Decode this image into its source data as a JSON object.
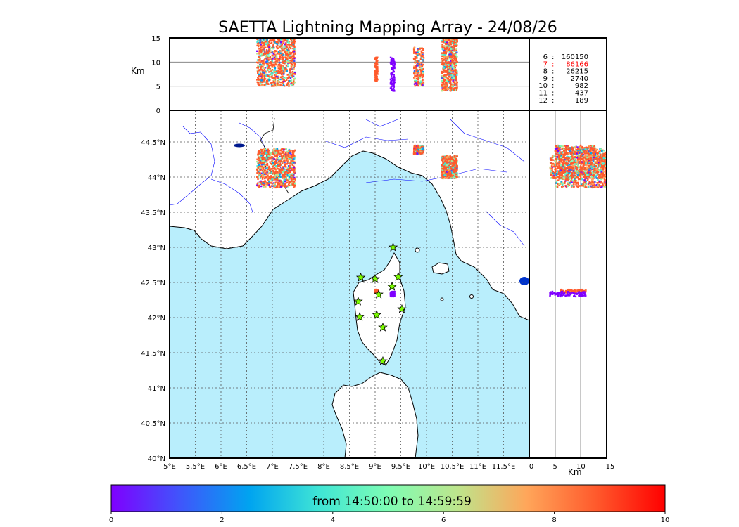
{
  "title": "SAETTA Lightning Mapping Array - 24/08/26",
  "chart_data": {
    "type": "scatter",
    "map": {
      "lon_range": [
        5,
        12
      ],
      "lat_range": [
        40,
        44.95
      ],
      "lon_ticks": [
        "5°E",
        "5.5°E",
        "6°E",
        "6.5°E",
        "7°E",
        "7.5°E",
        "8°E",
        "8.5°E",
        "9°E",
        "9.5°E",
        "10°E",
        "10.5°E",
        "11°E",
        "11.5°E"
      ],
      "lat_ticks": [
        "40°N",
        "40.5°N",
        "41°N",
        "41.5°N",
        "42°N",
        "42.5°N",
        "43°N",
        "43.5°N",
        "44°N",
        "44.5°N"
      ],
      "grid": true
    },
    "altitude_axis": {
      "label": "Km",
      "range": [
        0,
        15
      ],
      "ticks": [
        "0",
        "5",
        "10",
        "15"
      ]
    },
    "stations": [
      {
        "lon": 9.35,
        "lat": 43.0
      },
      {
        "lon": 8.72,
        "lat": 42.57
      },
      {
        "lon": 9.0,
        "lat": 42.55
      },
      {
        "lon": 9.45,
        "lat": 42.58
      },
      {
        "lon": 9.33,
        "lat": 42.44
      },
      {
        "lon": 9.07,
        "lat": 42.33
      },
      {
        "lon": 8.67,
        "lat": 42.23
      },
      {
        "lon": 9.52,
        "lat": 42.12
      },
      {
        "lon": 8.7,
        "lat": 42.01
      },
      {
        "lon": 9.03,
        "lat": 42.04
      },
      {
        "lon": 9.15,
        "lat": 41.86
      },
      {
        "lon": 9.15,
        "lat": 41.38
      }
    ],
    "storm_cells": [
      {
        "lon_range": [
          6.7,
          7.45
        ],
        "lat_range": [
          43.85,
          44.4
        ],
        "alt_range": [
          5,
          15
        ]
      },
      {
        "lon_range": [
          9.0,
          9.05
        ],
        "lat_range": [
          42.35,
          42.4
        ],
        "alt_range": [
          6,
          11
        ]
      },
      {
        "lon_range": [
          9.3,
          9.38
        ],
        "lat_range": [
          42.3,
          42.37
        ],
        "alt_range": [
          4,
          11
        ]
      },
      {
        "lon_range": [
          9.75,
          9.95
        ],
        "lat_range": [
          44.33,
          44.45
        ],
        "alt_range": [
          5,
          13
        ]
      },
      {
        "lon_range": [
          10.3,
          10.6
        ],
        "lat_range": [
          43.98,
          44.3
        ],
        "alt_range": [
          4,
          15
        ]
      }
    ],
    "station_counts": [
      {
        "stations": "6",
        "count": "160150",
        "color": "#000000"
      },
      {
        "stations": "7",
        "count": "86166",
        "color": "#ff0000"
      },
      {
        "stations": "8",
        "count": "26215",
        "color": "#000000"
      },
      {
        "stations": "9",
        "count": "2740",
        "color": "#000000"
      },
      {
        "stations": "10",
        "count": "982",
        "color": "#000000"
      },
      {
        "stations": "11",
        "count": "437",
        "color": "#000000"
      },
      {
        "stations": "12",
        "count": "189",
        "color": "#000000"
      }
    ],
    "colorbar": {
      "range": [
        0,
        10
      ],
      "ticks": [
        "0",
        "2",
        "4",
        "6",
        "8",
        "10"
      ],
      "label": "from 14:50:00 to 14:59:59"
    }
  },
  "colors": {
    "sea": "#b9eefc",
    "border": "#0000ff",
    "station_fill": "#7cfc00",
    "colormap": [
      "#7f00ff",
      "#3f56fb",
      "#00a4f0",
      "#3fe5d5",
      "#7efdb4",
      "#bde58c",
      "#ffa65a",
      "#ff5a2c",
      "#ff0000"
    ]
  }
}
